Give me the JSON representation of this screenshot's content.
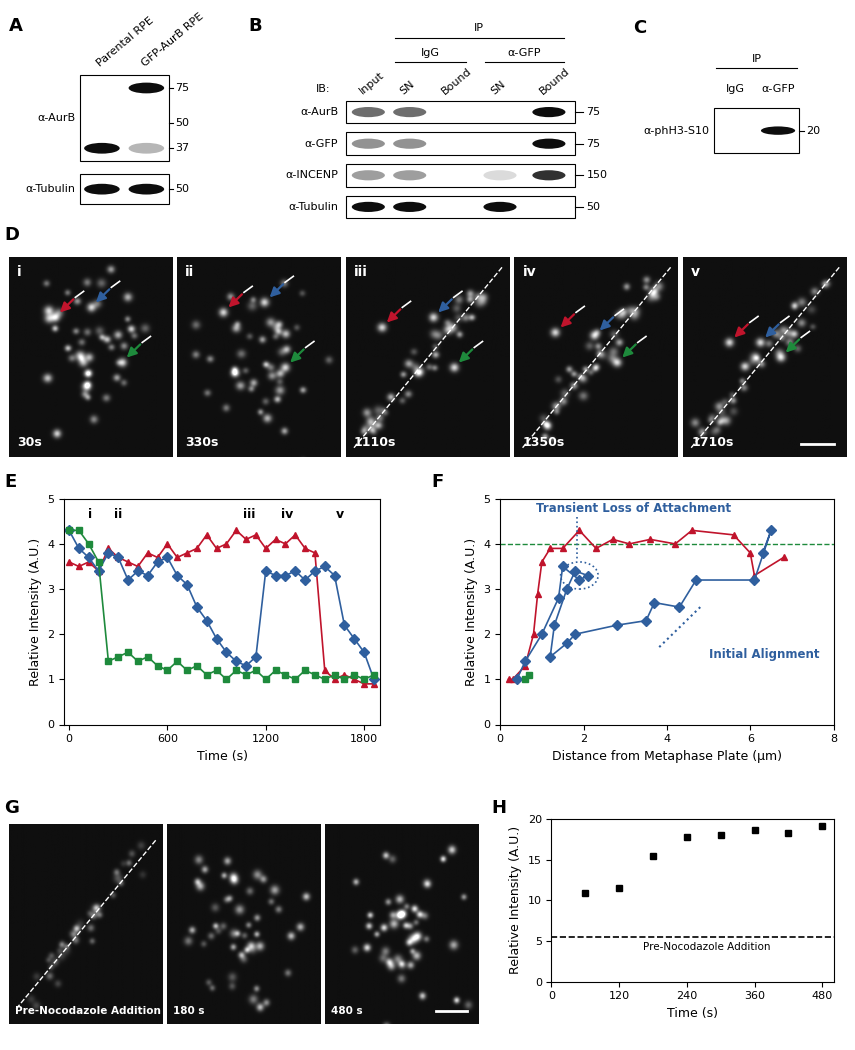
{
  "panel_labels": [
    "A",
    "B",
    "C",
    "D",
    "E",
    "F",
    "G",
    "H"
  ],
  "blots": {
    "A": {
      "lanes": [
        "Parental RPE",
        "GFP-AurB RPE"
      ],
      "rows": [
        {
          "label": "α-AurB",
          "markers": [
            75,
            50,
            37
          ]
        },
        {
          "label": "α-Tubulin",
          "markers": [
            50
          ]
        }
      ]
    },
    "B": {
      "header": "IP",
      "groups": [
        "IgG",
        "α-GFP"
      ],
      "ib_label": "IB:",
      "lanes": [
        "Input",
        "SN",
        "Bound",
        "SN",
        "Bound"
      ],
      "rows": [
        {
          "label": "α-AurB",
          "markers": [
            75
          ]
        },
        {
          "label": "α-GFP",
          "markers": [
            75
          ]
        },
        {
          "label": "α-INCENP",
          "markers": [
            150
          ]
        },
        {
          "label": "α-Tubulin",
          "markers": [
            50
          ]
        }
      ]
    },
    "C": {
      "header": "IP",
      "groups": [
        "IgG",
        "α-GFP"
      ],
      "rows": [
        {
          "label": "α-phH3-S10",
          "markers": [
            20
          ]
        }
      ]
    }
  },
  "micrographs": {
    "D": {
      "frames": [
        {
          "numeral": "i",
          "time": "30s"
        },
        {
          "numeral": "ii",
          "time": "330s"
        },
        {
          "numeral": "iii",
          "time": "1110s"
        },
        {
          "numeral": "iv",
          "time": "1350s"
        },
        {
          "numeral": "v",
          "time": "1710s"
        }
      ]
    },
    "G": {
      "frames": [
        "Pre-Nocodazole Addition",
        "180 s",
        "480 s"
      ]
    }
  },
  "chart_data": [
    {
      "type": "line",
      "x_label": "Time (s)",
      "y_label": "Relative Intensity (A.U.)",
      "xlim": [
        -30,
        1900
      ],
      "xticks": [
        0,
        600,
        1200,
        1800
      ],
      "ylim": [
        0,
        5
      ],
      "yticks": [
        0,
        1,
        2,
        3,
        4,
        5
      ],
      "x": [
        0,
        60,
        120,
        180,
        240,
        300,
        360,
        420,
        480,
        540,
        600,
        660,
        720,
        780,
        840,
        900,
        960,
        1020,
        1080,
        1140,
        1200,
        1260,
        1320,
        1380,
        1440,
        1500,
        1560,
        1620,
        1680,
        1740,
        1800,
        1860
      ],
      "series": [
        {
          "color": "#c0142c",
          "marker": "triangle",
          "line_style": "solid",
          "values": [
            3.6,
            3.5,
            3.6,
            3.4,
            3.9,
            3.7,
            3.6,
            3.5,
            3.8,
            3.7,
            4.0,
            3.7,
            3.8,
            3.9,
            4.2,
            3.9,
            4.0,
            4.3,
            4.1,
            4.2,
            3.9,
            4.1,
            4.0,
            4.2,
            3.9,
            3.8,
            1.2,
            1.0,
            1.1,
            1.0,
            0.9,
            0.9
          ]
        },
        {
          "color": "#2f5f9e",
          "marker": "diamond",
          "line_style": "solid",
          "values": [
            4.3,
            3.9,
            3.7,
            3.4,
            3.8,
            3.7,
            3.2,
            3.4,
            3.3,
            3.6,
            3.7,
            3.3,
            3.1,
            2.6,
            2.3,
            1.9,
            1.6,
            1.4,
            1.3,
            1.5,
            3.4,
            3.3,
            3.3,
            3.4,
            3.2,
            3.4,
            3.5,
            3.3,
            2.2,
            1.9,
            1.6,
            1.0
          ]
        },
        {
          "color": "#1e8a3c",
          "marker": "square",
          "line_style": "solid",
          "values": [
            4.3,
            4.3,
            4.0,
            3.6,
            1.4,
            1.5,
            1.6,
            1.4,
            1.5,
            1.3,
            1.2,
            1.4,
            1.2,
            1.3,
            1.1,
            1.2,
            1.0,
            1.2,
            1.1,
            1.2,
            1.0,
            1.2,
            1.1,
            1.0,
            1.2,
            1.1,
            1.0,
            1.1,
            1.0,
            1.1,
            1.0,
            1.1
          ]
        }
      ],
      "annotations": [
        {
          "text": "i",
          "x": 130
        },
        {
          "text": "ii",
          "x": 300
        },
        {
          "text": "iii",
          "x": 1100
        },
        {
          "text": "iv",
          "x": 1330
        },
        {
          "text": "v",
          "x": 1650
        }
      ]
    },
    {
      "type": "line",
      "x_label": "Distance from Metaphase Plate (µm)",
      "y_label": "Relative Intensity (A.U.)",
      "xlim": [
        0,
        8
      ],
      "xticks": [
        0,
        2,
        4,
        6,
        8
      ],
      "ylim": [
        0,
        5
      ],
      "yticks": [
        0,
        1,
        2,
        3,
        4,
        5
      ],
      "series": [
        {
          "color": "#c0142c",
          "marker": "triangle",
          "line_style": "solid",
          "x": [
            6.8,
            6.1,
            6.0,
            5.6,
            4.6,
            4.2,
            3.6,
            3.1,
            2.7,
            2.3,
            1.9,
            1.5,
            1.2,
            1.0,
            0.9,
            0.8,
            0.6,
            0.3,
            0.2
          ],
          "values": [
            3.7,
            3.3,
            3.8,
            4.2,
            4.3,
            4.0,
            4.1,
            4.0,
            4.1,
            3.9,
            4.3,
            3.9,
            3.9,
            3.6,
            2.9,
            2.0,
            1.3,
            1.0,
            1.0
          ]
        },
        {
          "color": "#2f5f9e",
          "marker": "diamond",
          "line_style": "solid",
          "x": [
            6.3,
            6.5,
            6.1,
            4.7,
            4.3,
            3.7,
            3.5,
            2.8,
            1.8,
            1.6,
            1.2,
            1.3,
            1.6,
            1.8,
            2.1,
            1.9,
            1.5,
            1.4,
            1.0,
            0.6,
            0.4
          ],
          "values": [
            3.8,
            4.3,
            3.2,
            3.2,
            2.6,
            2.7,
            2.3,
            2.2,
            2.0,
            1.8,
            1.5,
            2.2,
            3.0,
            3.4,
            3.3,
            3.2,
            3.5,
            2.8,
            2.0,
            1.4,
            1.0
          ]
        },
        {
          "color": "#1e8a3c",
          "marker": "square",
          "line_style": "solid",
          "x": [
            0.7,
            0.6
          ],
          "values": [
            1.1,
            1.0
          ]
        }
      ],
      "reference_line": {
        "value": 4,
        "color": "#1e8a3c"
      },
      "annotations": [
        {
          "text": "Transient Loss of Attachment",
          "color": "#2f5f9e"
        },
        {
          "text": "Initial Alignment",
          "color": "#2f5f9e"
        }
      ]
    },
    {
      "type": "scatter",
      "x_label": "Time (s)",
      "y_label": "Relative Intensity (A.U.)",
      "xlim": [
        0,
        500
      ],
      "xticks": [
        0,
        120,
        240,
        360,
        480
      ],
      "ylim": [
        0,
        20
      ],
      "yticks": [
        0,
        5,
        10,
        15,
        20
      ],
      "series": [
        {
          "color": "#000000",
          "marker": "square",
          "line_style": "none",
          "x": [
            60,
            120,
            180,
            240,
            300,
            360,
            420,
            480
          ],
          "values": [
            10.9,
            11.5,
            15.5,
            17.8,
            18.0,
            18.7,
            18.3,
            19.1
          ]
        }
      ],
      "reference_line": {
        "value": 5.5,
        "color": "#000000",
        "label": "Pre-Nocodazole Addition"
      }
    }
  ]
}
